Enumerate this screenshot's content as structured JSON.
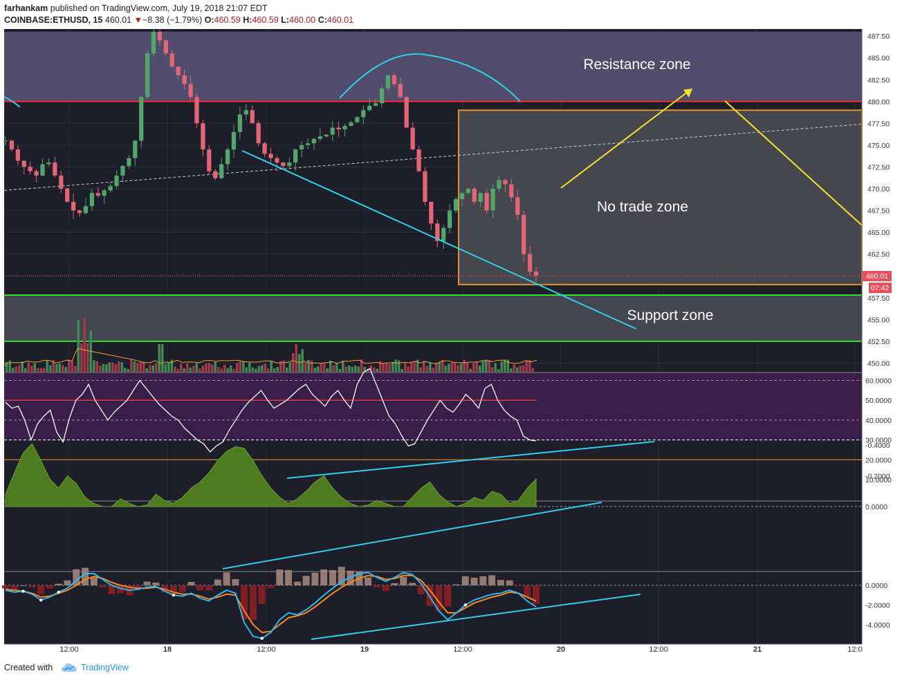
{
  "header": {
    "author": "farhankam",
    "published_text": "published on TradingView.com, July 19, 2018 21:07 EDT",
    "symbol": "COINBASE:ETHUSD, 15",
    "last": "460.01",
    "change_arrow": "▼",
    "change": "−8.38 (−1.79%)",
    "o_label": "O:",
    "o_value": "460.59",
    "h_label": "H:",
    "h_value": "460.59",
    "l_label": "L:",
    "l_value": "460.00",
    "c_label": "C:",
    "c_value": "460.01"
  },
  "annotations": {
    "resistance": "Resistance zone",
    "no_trade": "No trade zone",
    "support": "Support zone"
  },
  "price_badge": {
    "price": "460.01",
    "timer": "07:42"
  },
  "footer": {
    "created_with": "Created with",
    "brand": "TradingView"
  },
  "colors": {
    "background": "#1e1e2a",
    "up_candle": "#53a66a",
    "down_candle": "#e26675",
    "resistance_band": "#5a5478",
    "support_band": "#4a4a55",
    "no_trade_box": "#4a4a52",
    "rsi_band": "#3a1f4a",
    "trendline": "#2fd1e6",
    "orange": "#f0a030",
    "yellow": "#f2e52a",
    "red_level": "#ff2a2a",
    "green_level": "#32e032",
    "macd_fast": "#33b5f0",
    "macd_slow": "#f58a1f",
    "osc_fill": "#4e7a20"
  },
  "icons": {
    "tv_logo": "tradingview-cloud-icon",
    "change_arrow": "down-triangle-icon"
  },
  "chart_data": [
    {
      "type": "candlestick",
      "name": "price",
      "time_labels": [
        "12:00",
        "18",
        "12:00",
        "19",
        "12:00",
        "20",
        "12:00",
        "21",
        "12:0"
      ],
      "y_ticks": [
        "487.50",
        "485.00",
        "482.50",
        "480.00",
        "477.50",
        "475.00",
        "472.50",
        "470.00",
        "467.50",
        "465.00",
        "462.50",
        "460.00",
        "457.50",
        "455.00",
        "452.50",
        "450.00"
      ],
      "ylim": [
        449,
        488
      ],
      "levels": {
        "resistance": 480.0,
        "support_top": 457.8,
        "support_bottom": 452.5
      },
      "zones": {
        "resistance_zone": [
          480,
          488
        ],
        "support_zone": [
          452.5,
          457.8
        ],
        "no_trade_zone": [
          459,
          479
        ]
      },
      "last_price": 460.01,
      "close_path": [
        475.5,
        474.5,
        473.2,
        472.5,
        472.0,
        471.5,
        472.8,
        473.0,
        471.5,
        470.0,
        468.5,
        467.5,
        467.2,
        468.0,
        469.5,
        469.2,
        469.8,
        470.3,
        471.5,
        472.6,
        473.5,
        475.5,
        480.5,
        485.5,
        488.0,
        487.0,
        485.5,
        484.0,
        483.0,
        482.0,
        480.5,
        477.5,
        474.5,
        472.0,
        471.2,
        472.8,
        474.5,
        476.5,
        478.5,
        479.0,
        477.5,
        475.2,
        474.0,
        473.5,
        473.0,
        472.6,
        473.0,
        474.5,
        475.0,
        475.2,
        475.7,
        476.0,
        476.2,
        477.0,
        476.8,
        477.2,
        477.6,
        478.2,
        479.0,
        479.5,
        479.8,
        481.5,
        483.0,
        482.0,
        480.5,
        477.0,
        474.5,
        472.0,
        468.5,
        466.0,
        464.0,
        465.5,
        467.5,
        468.8,
        469.5,
        470.0,
        468.5,
        469.5,
        467.5,
        470.0,
        471.0,
        470.5,
        469.0,
        467.0,
        462.5,
        460.5,
        460.01
      ]
    },
    {
      "type": "bar",
      "name": "volume",
      "note": "histogram at bottom of price pane with orange moving average"
    },
    {
      "type": "line",
      "name": "rsi",
      "y_ticks": [
        "60.0000",
        "50.0000",
        "40.0000",
        "30.0000",
        "20.0000",
        "10.0000"
      ],
      "ylim": [
        5,
        70
      ],
      "levels": {
        "overbought_dashed": 60,
        "mid_solid": 50,
        "middle_dashed": 40,
        "oversold_dashed": 30,
        "floor_orange": 20
      },
      "values": [
        49,
        46,
        47,
        40,
        30,
        38,
        42,
        45,
        34,
        29,
        41,
        50,
        53,
        58,
        50,
        45,
        40,
        44,
        47,
        50,
        55,
        60,
        56,
        52,
        48,
        45,
        42,
        40,
        36,
        33,
        30,
        28,
        24,
        27,
        29,
        35,
        40,
        45,
        49,
        52,
        55,
        50,
        46,
        48,
        50,
        53,
        56,
        58,
        53,
        50,
        47,
        52,
        55,
        50,
        46,
        58,
        64,
        66,
        58,
        50,
        42,
        38,
        32,
        27,
        28,
        34,
        40,
        45,
        50,
        46,
        44,
        48,
        53,
        50,
        46,
        56,
        58,
        50,
        45,
        42,
        40,
        32,
        30,
        29.5
      ]
    },
    {
      "type": "area",
      "name": "oscillator",
      "y_ticks": [
        "0.0000",
        "-0.2000",
        "-0.4000"
      ],
      "ylim": [
        -0.45,
        0.04
      ],
      "values": [
        -0.08,
        -0.22,
        -0.35,
        -0.41,
        -0.3,
        -0.18,
        -0.12,
        -0.2,
        -0.15,
        -0.06,
        -0.02,
        0.0,
        0.0,
        -0.05,
        -0.02,
        0.0,
        -0.01,
        -0.08,
        -0.04,
        -0.02,
        -0.06,
        -0.12,
        -0.16,
        -0.22,
        -0.3,
        -0.36,
        -0.39,
        -0.38,
        -0.3,
        -0.2,
        -0.12,
        -0.06,
        -0.02,
        -0.05,
        -0.1,
        -0.16,
        -0.2,
        -0.12,
        -0.06,
        -0.02,
        0.0,
        -0.01,
        -0.04,
        -0.02,
        0.0,
        0.0,
        -0.06,
        -0.12,
        -0.16,
        -0.08,
        -0.03,
        0.0,
        -0.02,
        -0.06,
        -0.04,
        -0.1,
        -0.08,
        -0.02,
        -0.04,
        -0.12,
        -0.18
      ]
    },
    {
      "type": "line",
      "name": "macd",
      "y_ticks": [
        "0.0000",
        "-2.0000",
        "-4.0000"
      ],
      "ylim": [
        -5.6,
        1.4
      ],
      "series": [
        {
          "values": [
            -0.5,
            -0.7,
            -0.6,
            -0.9,
            -1.5,
            -1.2,
            -0.7,
            -0.3,
            0.5,
            1.2,
            1.2,
            0.6,
            0.0,
            -0.3,
            -0.5,
            -0.4,
            -0.2,
            -0.1,
            -0.6,
            -1.0,
            -1.1,
            -0.8,
            -1.3,
            -1.6,
            -1.0,
            -0.5,
            -0.8,
            -3.8,
            -5.2,
            -5.4,
            -4.8,
            -3.5,
            -2.8,
            -3.0,
            -2.5,
            -1.8,
            -1.0,
            -0.3,
            0.4,
            0.8,
            1.2,
            1.3,
            0.8,
            0.4,
            0.8,
            1.3,
            1.1,
            0.2,
            -1.2,
            -2.6,
            -3.5,
            -2.8,
            -2.0,
            -1.5,
            -1.2,
            -0.9,
            -0.8,
            -0.5,
            -0.8,
            -1.6,
            -2.2
          ]
        },
        {
          "values": [
            -0.4,
            -0.5,
            -0.6,
            -0.8,
            -1.2,
            -1.1,
            -0.8,
            -0.5,
            0.0,
            0.6,
            0.9,
            0.7,
            0.3,
            0.0,
            -0.2,
            -0.3,
            -0.3,
            -0.2,
            -0.4,
            -0.7,
            -0.9,
            -0.9,
            -1.1,
            -1.4,
            -1.2,
            -0.9,
            -1.0,
            -2.6,
            -4.0,
            -4.8,
            -4.7,
            -4.0,
            -3.3,
            -3.1,
            -2.8,
            -2.2,
            -1.5,
            -0.8,
            -0.2,
            0.3,
            0.7,
            1.0,
            0.9,
            0.6,
            0.7,
            1.0,
            1.0,
            0.5,
            -0.5,
            -1.7,
            -2.8,
            -2.8,
            -2.3,
            -1.8,
            -1.5,
            -1.2,
            -1.0,
            -0.7,
            -0.8,
            -1.2,
            -1.6
          ]
        }
      ]
    }
  ]
}
